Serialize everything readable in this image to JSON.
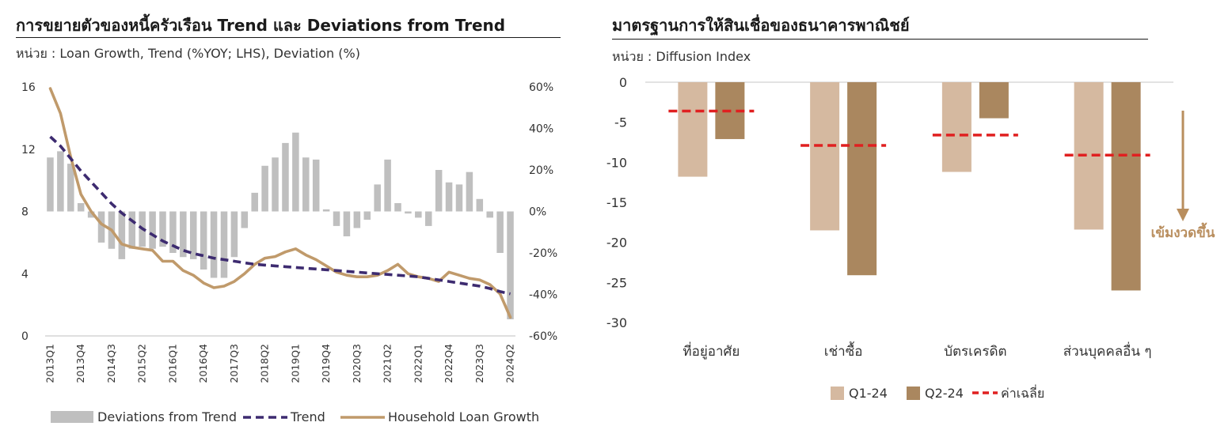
{
  "left_panel": {
    "title": "การขยายตัวของหนี้ครัวเรือน Trend และ Deviations from Trend",
    "unit": "หน่วย : Loan Growth, Trend (%YOY; LHS), Deviation (%)"
  },
  "right_panel": {
    "title": "มาตรฐานการให้สินเชื่อของธนาคารพาณิชย์",
    "unit": "หน่วย : Diffusion Index"
  },
  "colors": {
    "deviation": "#BFBFBF",
    "trend": "#3D2B70",
    "household": "#C09A6B",
    "q1": "#D5B9A0",
    "q2": "#AA875F",
    "average": "#E02020",
    "annotation": "#B98E5E"
  },
  "chart_data": [
    {
      "type": "bar+line",
      "title": "การขยายตัวของหนี้ครัวเรือน Trend และ Deviations from Trend",
      "ylim_left": [
        0,
        16
      ],
      "yticks_left": [
        "0",
        "4",
        "8",
        "12",
        "16"
      ],
      "ylim_right": [
        -60,
        60
      ],
      "yticks_right": [
        "-60%",
        "-40%",
        "-20%",
        "0%",
        "20%",
        "40%",
        "60%"
      ],
      "x_tick_labels": [
        "2013Q1",
        "2013Q4",
        "2014Q3",
        "2015Q2",
        "2016Q1",
        "2016Q4",
        "2017Q3",
        "2018Q2",
        "2019Q1",
        "2019Q4",
        "2020Q3",
        "2021Q2",
        "2022Q1",
        "2022Q4",
        "2023Q3",
        "2024Q2"
      ],
      "legend": [
        "Deviations from Trend",
        "Trend",
        "Household Loan Growth"
      ],
      "legend_position": "bottom",
      "x": [
        "2013Q1",
        "2013Q2",
        "2013Q3",
        "2013Q4",
        "2014Q1",
        "2014Q2",
        "2014Q3",
        "2014Q4",
        "2015Q1",
        "2015Q2",
        "2015Q3",
        "2015Q4",
        "2016Q1",
        "2016Q2",
        "2016Q3",
        "2016Q4",
        "2017Q1",
        "2017Q2",
        "2017Q3",
        "2017Q4",
        "2018Q1",
        "2018Q2",
        "2018Q3",
        "2018Q4",
        "2019Q1",
        "2019Q2",
        "2019Q3",
        "2019Q4",
        "2020Q1",
        "2020Q2",
        "2020Q3",
        "2020Q4",
        "2021Q1",
        "2021Q2",
        "2021Q3",
        "2021Q4",
        "2022Q1",
        "2022Q2",
        "2022Q3",
        "2022Q4",
        "2023Q1",
        "2023Q2",
        "2023Q3",
        "2023Q4",
        "2024Q1",
        "2024Q2"
      ],
      "series": [
        {
          "name": "Deviations from Trend",
          "axis": "right",
          "type": "bar",
          "values": [
            26,
            29,
            23,
            4,
            -3,
            -15,
            -18,
            -23,
            -18,
            -17,
            -18,
            -17,
            -20,
            -22,
            -23,
            -28,
            -32,
            -32,
            -22,
            -8,
            9,
            22,
            26,
            33,
            38,
            26,
            25,
            1,
            -7,
            -12,
            -8,
            -4,
            13,
            25,
            4,
            -1,
            -3,
            -7,
            20,
            14,
            13,
            19,
            6,
            -3,
            -20,
            -52
          ]
        },
        {
          "name": "Trend",
          "axis": "left",
          "type": "line",
          "values": [
            12.8,
            12.2,
            11.4,
            10.6,
            9.9,
            9.2,
            8.5,
            7.9,
            7.4,
            6.9,
            6.5,
            6.1,
            5.8,
            5.5,
            5.3,
            5.15,
            5.0,
            4.9,
            4.8,
            4.7,
            4.6,
            4.55,
            4.5,
            4.45,
            4.4,
            4.35,
            4.3,
            4.25,
            4.2,
            4.15,
            4.1,
            4.05,
            4.0,
            3.95,
            3.9,
            3.85,
            3.8,
            3.7,
            3.6,
            3.5,
            3.4,
            3.3,
            3.2,
            3.05,
            2.85,
            2.7
          ]
        },
        {
          "name": "Household Loan Growth",
          "axis": "left",
          "type": "line",
          "values": [
            15.9,
            14.3,
            11.5,
            9.1,
            8.0,
            7.2,
            6.8,
            5.9,
            5.7,
            5.6,
            5.5,
            4.8,
            4.8,
            4.2,
            3.9,
            3.4,
            3.1,
            3.2,
            3.5,
            4.0,
            4.6,
            5.0,
            5.1,
            5.4,
            5.6,
            5.2,
            4.9,
            4.5,
            4.1,
            3.9,
            3.8,
            3.8,
            3.9,
            4.2,
            4.6,
            4.0,
            3.8,
            3.7,
            3.5,
            4.1,
            3.9,
            3.7,
            3.6,
            3.3,
            2.7,
            1.2
          ]
        }
      ]
    },
    {
      "type": "bar",
      "title": "มาตรฐานการให้สินเชื่อของธนาคารพาณิชย์",
      "categories": [
        "ที่อยู่อาศัย",
        "เช่าซื้อ",
        "บัตรเครดิต",
        "ส่วนบุคคลอื่น ๆ"
      ],
      "ylim": [
        -30,
        0
      ],
      "yticks": [
        "0",
        "-5",
        "-10",
        "-15",
        "-20",
        "-25",
        "-30"
      ],
      "legend": [
        "Q1-24",
        "Q2-24",
        "ค่าเฉลี่ย"
      ],
      "legend_position": "bottom",
      "series": [
        {
          "name": "Q1-24",
          "type": "bar",
          "values": [
            -11.8,
            -18.5,
            -11.2,
            -18.4
          ]
        },
        {
          "name": "Q2-24",
          "type": "bar",
          "values": [
            -7.1,
            -24.1,
            -4.5,
            -26.0
          ]
        },
        {
          "name": "ค่าเฉลี่ย",
          "type": "dashed-line",
          "values": [
            -3.6,
            -7.9,
            -6.6,
            -9.1
          ]
        }
      ],
      "annotation": "เข้มงวดขึ้น"
    }
  ]
}
